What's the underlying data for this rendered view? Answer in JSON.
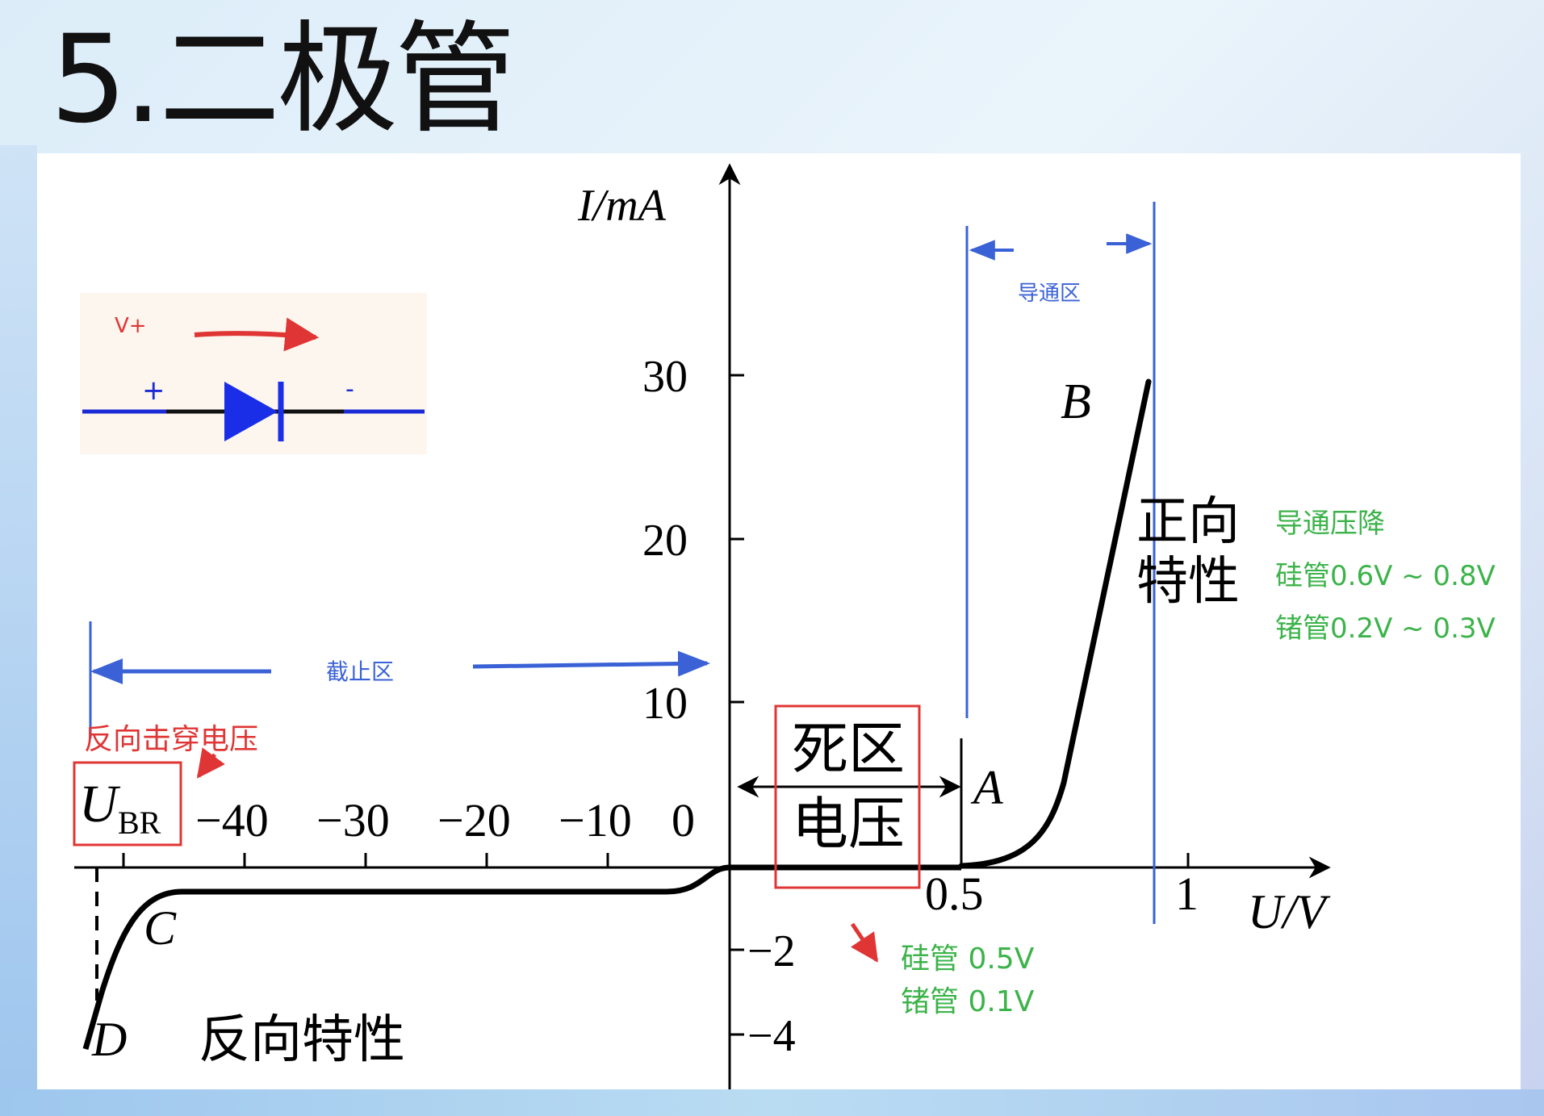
{
  "title": "5.二极管",
  "diagram": {
    "y_axis_label": "I/mA",
    "x_axis_label": "U/V",
    "y_ticks_positive": [
      "30",
      "20",
      "10"
    ],
    "y_ticks_negative": [
      "−2",
      "−4"
    ],
    "x_ticks_negative": [
      "−40",
      "−30",
      "−20",
      "−10",
      "0"
    ],
    "x_ticks_positive": [
      "0.5",
      "1"
    ],
    "ubr_main": "U",
    "ubr_sub": "BR",
    "point_labels": {
      "a": "A",
      "b": "B",
      "c": "C",
      "d": "D"
    },
    "dead_zone": {
      "line1": "死区",
      "line2": "电压"
    },
    "forward": {
      "line1": "正向",
      "line2": "特性"
    },
    "reverse_characteristic": "反向特性",
    "conduction_region": "导通区",
    "cutoff_region": "截止区",
    "breakdown_voltage": "反向击穿电压",
    "forward_drop": {
      "title": "导通压降",
      "silicon": "硅管0.6V ~ 0.8V",
      "germanium": "锗管0.2V ~ 0.3V"
    },
    "dead_zone_values": {
      "silicon": "硅管 0.5V",
      "germanium": "锗管 0.1V"
    },
    "diode_symbol": {
      "v_plus": "V+",
      "plus": "+",
      "minus": "-"
    },
    "colors": {
      "curve": "#000000",
      "annotation_blue": "#3a62d6",
      "annotation_red": "#e03535",
      "annotation_green": "#3cb34a",
      "diode_fill": "#1a2ee8"
    }
  }
}
